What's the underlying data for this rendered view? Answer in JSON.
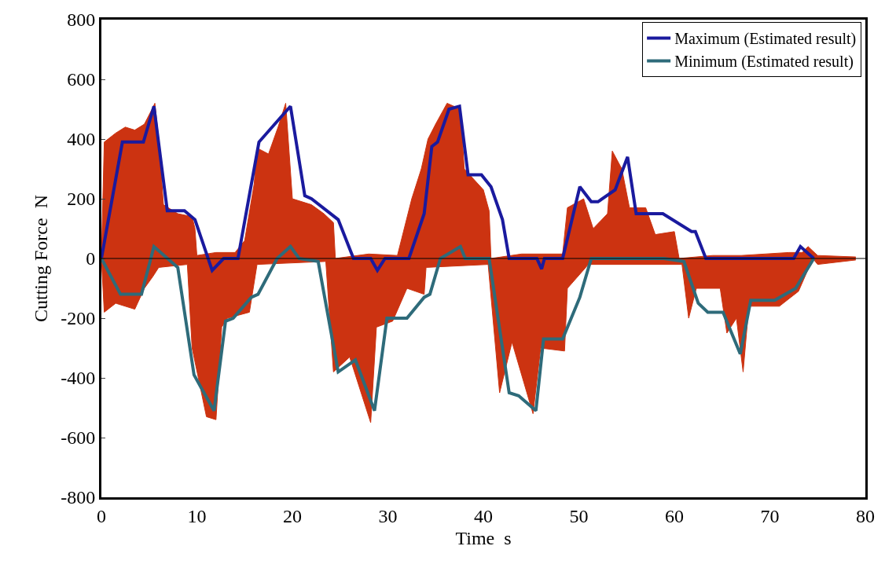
{
  "chart_data": {
    "type": "line",
    "xlabel": "Time  s",
    "ylabel": "Cutting Force  N",
    "xlim": [
      0,
      80
    ],
    "xticks": [
      0,
      10,
      20,
      30,
      40,
      50,
      60,
      70,
      80
    ],
    "ylim": [
      -800,
      800
    ],
    "yticks": [
      -800,
      -600,
      -400,
      -200,
      0,
      200,
      400,
      600,
      800
    ],
    "grid": false,
    "legend": "top right",
    "line_style": "solid",
    "marker": "none",
    "ref_lines": [
      {
        "axis": "y",
        "value": 0,
        "color": "#000000"
      }
    ],
    "series": [
      {
        "type": "area",
        "color": "#cc3311",
        "x": [
          0,
          0.3,
          1.5,
          2.5,
          3.5,
          4.5,
          5.3,
          5.6,
          6.0,
          6.5,
          8,
          9.5,
          9.8,
          10,
          12,
          14,
          15,
          16,
          16.3,
          17.5,
          18.5,
          19.3,
          20,
          22,
          23.3,
          24.3,
          24.5,
          28,
          31,
          32.5,
          33.5,
          34.2,
          35,
          36.2,
          37.6,
          38,
          40,
          40.6,
          40.8,
          44,
          48.3,
          48.8,
          50.5,
          51.5,
          53,
          53.5,
          54.5,
          55.3,
          57,
          58,
          60,
          60.5,
          64,
          67,
          72,
          73.4,
          74,
          75,
          79
        ],
        "values": [
          0,
          390,
          420,
          440,
          430,
          450,
          500,
          520,
          400,
          180,
          150,
          140,
          100,
          10,
          20,
          20,
          60,
          250,
          370,
          350,
          440,
          520,
          200,
          180,
          150,
          120,
          0,
          15,
          10,
          200,
          300,
          400,
          450,
          520,
          500,
          300,
          230,
          160,
          0,
          15,
          15,
          170,
          200,
          100,
          150,
          360,
          300,
          170,
          170,
          80,
          90,
          0,
          10,
          10,
          20,
          20,
          40,
          10,
          5
        ]
      },
      {
        "type": "area",
        "color": "#cc3311",
        "x": [
          0,
          0.3,
          1.5,
          3.5,
          4.5,
          5.4,
          6,
          9,
          9.5,
          11,
          12,
          12.6,
          13.2,
          15.5,
          16.3,
          23.5,
          24.3,
          26,
          28.2,
          28.8,
          30.5,
          32,
          33.8,
          34,
          40.5,
          41.7,
          43,
          45.2,
          46,
          48.5,
          48.8,
          51,
          60.8,
          61.5,
          62.3,
          64.8,
          65.5,
          66.5,
          67.2,
          67.8,
          71,
          73,
          74.5,
          75,
          79
        ],
        "values": [
          0,
          -180,
          -150,
          -170,
          -100,
          -60,
          -30,
          -20,
          -300,
          -530,
          -540,
          -230,
          -200,
          -180,
          -20,
          -10,
          -380,
          -330,
          -550,
          -230,
          -210,
          -100,
          -120,
          -30,
          -20,
          -450,
          -280,
          -520,
          -300,
          -310,
          -100,
          -20,
          -20,
          -200,
          -100,
          -100,
          -250,
          -200,
          -380,
          -160,
          -160,
          -110,
          0,
          -20,
          -5
        ]
      },
      {
        "name": "Maximum (Estimated result)",
        "color": "#1a1a9e",
        "x": [
          0,
          2.2,
          4.4,
          5.5,
          6.9,
          8.7,
          9.8,
          11.6,
          12.8,
          14.3,
          16.5,
          19.8,
          21.3,
          22,
          24.8,
          26.4,
          28.2,
          28.9,
          29.7,
          32.2,
          33.8,
          34.6,
          35.2,
          36.4,
          37.5,
          38.4,
          39.8,
          40.8,
          42,
          42.7,
          45.6,
          46.1,
          46.4,
          48.3,
          50.1,
          51.3,
          52,
          53.8,
          55.1,
          56,
          58.8,
          61.8,
          62.2,
          63.3,
          72.5,
          73.2,
          74.6
        ],
        "values": [
          0,
          390,
          390,
          510,
          160,
          160,
          130,
          -40,
          0,
          0,
          390,
          510,
          210,
          200,
          130,
          0,
          0,
          -40,
          0,
          0,
          150,
          375,
          390,
          500,
          510,
          280,
          280,
          240,
          130,
          0,
          0,
          -35,
          0,
          0,
          240,
          190,
          190,
          230,
          340,
          150,
          150,
          90,
          90,
          0,
          0,
          40,
          0
        ]
      },
      {
        "name": "Minimum (Estimated result)",
        "color": "#2e6b7a",
        "x": [
          0,
          2,
          4.2,
          5.5,
          8,
          9.7,
          11.8,
          13,
          13.8,
          15.7,
          16.4,
          18.4,
          19.8,
          20.7,
          22.7,
          24.8,
          26.6,
          28.6,
          29.9,
          32,
          33.8,
          34.4,
          35.5,
          37.6,
          38.1,
          40.6,
          42.7,
          43.7,
          45.5,
          46.3,
          48.3,
          50.1,
          51.3,
          58.9,
          61,
          62.5,
          63.5,
          65.1,
          66.9,
          68,
          70.5,
          72.7,
          74.6
        ],
        "values": [
          0,
          -120,
          -120,
          40,
          -30,
          -390,
          -510,
          -210,
          -200,
          -130,
          -120,
          0,
          40,
          0,
          -10,
          -380,
          -340,
          -510,
          -200,
          -200,
          -130,
          -120,
          0,
          40,
          0,
          0,
          -450,
          -460,
          -510,
          -270,
          -270,
          -130,
          0,
          0,
          -10,
          -150,
          -180,
          -180,
          -320,
          -140,
          -140,
          -100,
          0
        ]
      }
    ]
  }
}
